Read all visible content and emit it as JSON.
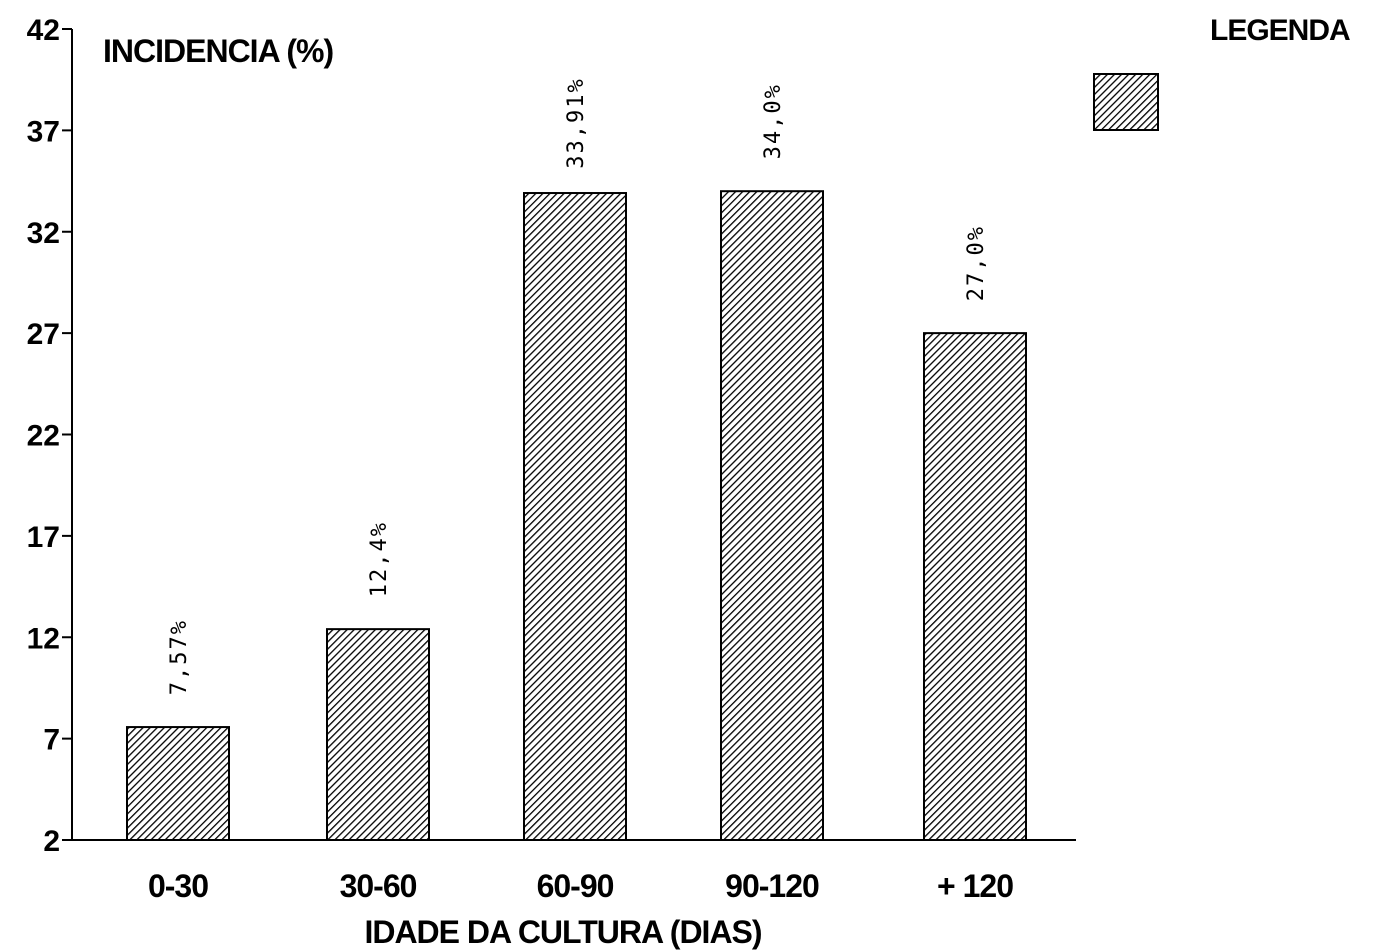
{
  "chart_data": {
    "type": "bar",
    "categories": [
      "0-30",
      "30-60",
      "60-90",
      "90-120",
      "+ 120"
    ],
    "values": [
      7.57,
      12.4,
      33.91,
      34.0,
      27.0
    ],
    "data_labels": [
      "7,57%",
      "12,4%",
      "33,91%",
      "34,0%",
      "27,0%"
    ],
    "ylabel": "INCIDENCIA (%)",
    "xlabel": "IDADE DA CULTURA (DIAS)",
    "ylim": [
      2,
      42
    ],
    "yticks": [
      "2",
      "7",
      "12",
      "17",
      "22",
      "27",
      "32",
      "37",
      "42"
    ],
    "legend_title": "LEGENDA",
    "legend_placement": "top-right",
    "grid": false,
    "bar_fill": "hatched",
    "colors": {
      "bar_stroke": "#000000",
      "hatch": "#000000",
      "background": "#ffffff"
    }
  }
}
